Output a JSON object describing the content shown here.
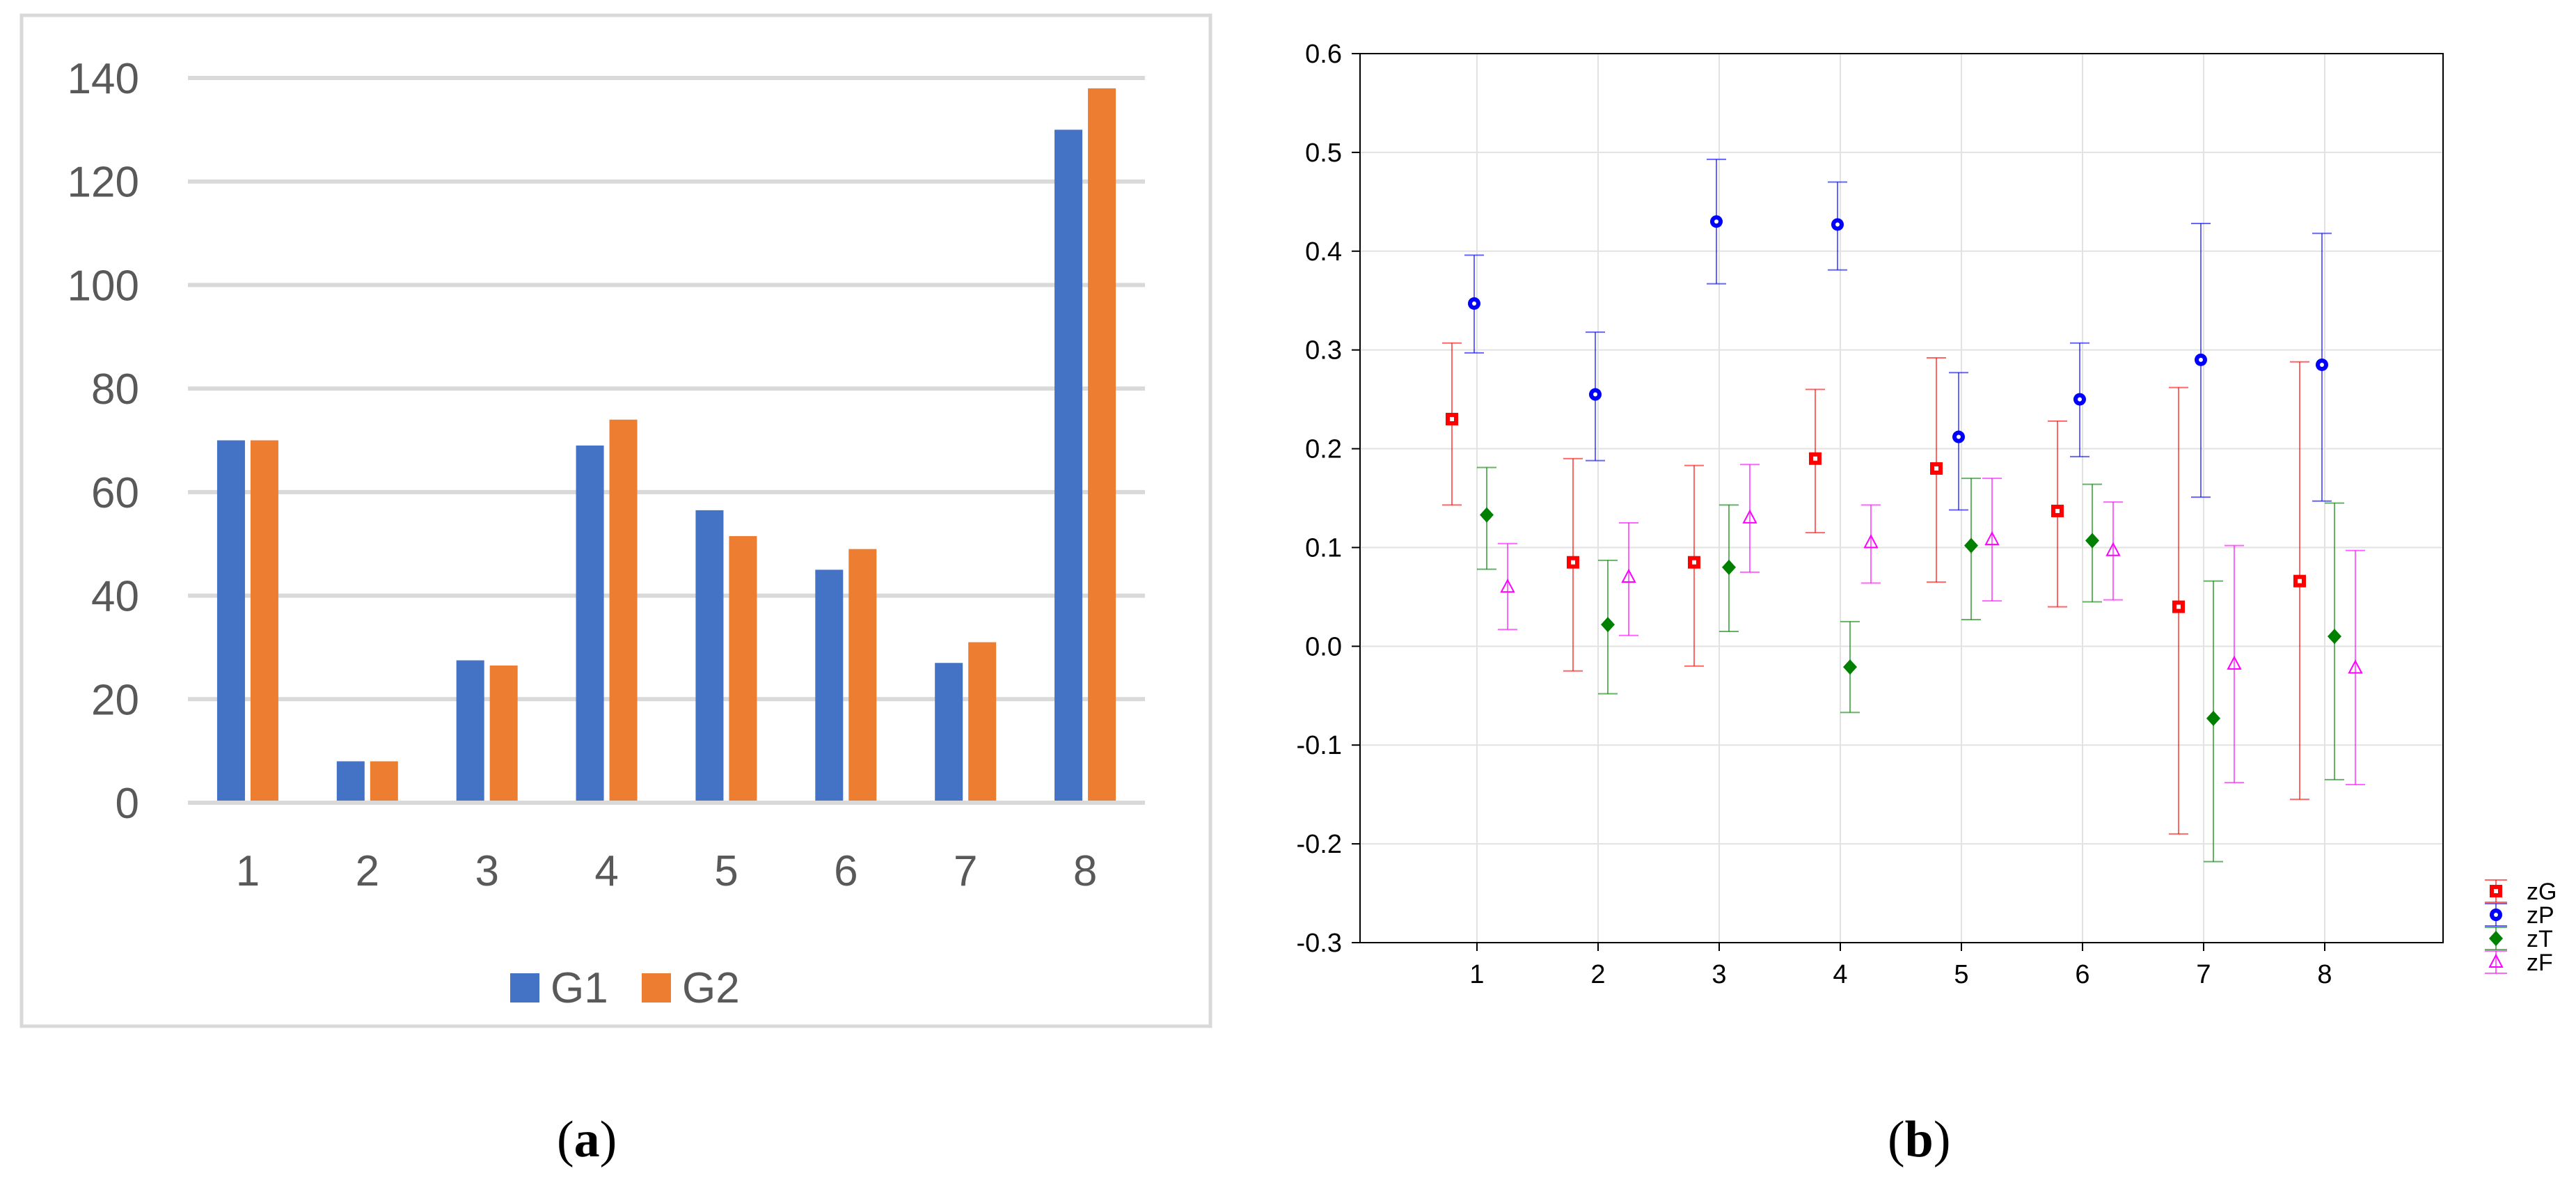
{
  "charts": {
    "a": {
      "panel_label": "a",
      "chart_data": {
        "type": "bar",
        "categories": [
          "1",
          "2",
          "3",
          "4",
          "5",
          "6",
          "7",
          "8"
        ],
        "series": [
          {
            "name": "G1",
            "color": "#4472C4",
            "values": [
              70,
              8,
              27.5,
              69,
              56.5,
              45,
              27,
              130
            ]
          },
          {
            "name": "G2",
            "color": "#ED7D31",
            "values": [
              70,
              8,
              26.5,
              74,
              51.5,
              49,
              31,
              138
            ]
          }
        ],
        "ylim": [
          0,
          140
        ],
        "yticks": [
          "0",
          "20",
          "40",
          "60",
          "80",
          "100",
          "120",
          "140"
        ],
        "grid": true,
        "legend": "bottom"
      }
    },
    "b": {
      "panel_label": "b",
      "chart_data": {
        "type": "scatter",
        "subtype": "error-bars",
        "categories": [
          "1",
          "2",
          "3",
          "4",
          "5",
          "6",
          "7",
          "8"
        ],
        "ylim": [
          -0.3,
          0.6
        ],
        "yticks": [
          "-0.3",
          "-0.2",
          "-0.1",
          "0.0",
          "0.1",
          "0.2",
          "0.3",
          "0.4",
          "0.5",
          "0.6"
        ],
        "grid": true,
        "legend": "right",
        "series": [
          {
            "name": "zG",
            "color": "#FF0000",
            "marker": "square",
            "means": [
              0.23,
              0.085,
              0.085,
              0.19,
              0.18,
              0.137,
              0.04,
              0.066
            ],
            "lower": [
              0.143,
              -0.025,
              -0.02,
              0.115,
              0.065,
              0.04,
              -0.19,
              -0.155
            ],
            "upper": [
              0.307,
              0.19,
              0.183,
              0.26,
              0.292,
              0.228,
              0.262,
              0.288
            ]
          },
          {
            "name": "zP",
            "color": "#0000FF",
            "marker": "circle",
            "means": [
              0.347,
              0.255,
              0.43,
              0.427,
              0.212,
              0.25,
              0.29,
              0.285
            ],
            "lower": [
              0.297,
              0.188,
              0.367,
              0.381,
              0.138,
              0.192,
              0.151,
              0.147
            ],
            "upper": [
              0.396,
              0.318,
              0.493,
              0.47,
              0.277,
              0.307,
              0.428,
              0.418
            ]
          },
          {
            "name": "zT",
            "color": "#008000",
            "marker": "diamond",
            "means": [
              0.133,
              0.022,
              0.08,
              -0.021,
              0.102,
              0.107,
              -0.073,
              0.01
            ],
            "lower": [
              0.078,
              -0.048,
              0.015,
              -0.067,
              0.027,
              0.045,
              -0.218,
              -0.135
            ],
            "upper": [
              0.181,
              0.087,
              0.143,
              0.025,
              0.17,
              0.164,
              0.066,
              0.145
            ]
          },
          {
            "name": "zF",
            "color": "#FF00FF",
            "marker": "triangle",
            "means": [
              0.06,
              0.07,
              0.13,
              0.105,
              0.108,
              0.097,
              -0.018,
              -0.022
            ],
            "lower": [
              0.017,
              0.011,
              0.075,
              0.064,
              0.046,
              0.047,
              -0.138,
              -0.14
            ],
            "upper": [
              0.104,
              0.125,
              0.184,
              0.143,
              0.17,
              0.146,
              0.102,
              0.097
            ]
          }
        ]
      }
    }
  }
}
